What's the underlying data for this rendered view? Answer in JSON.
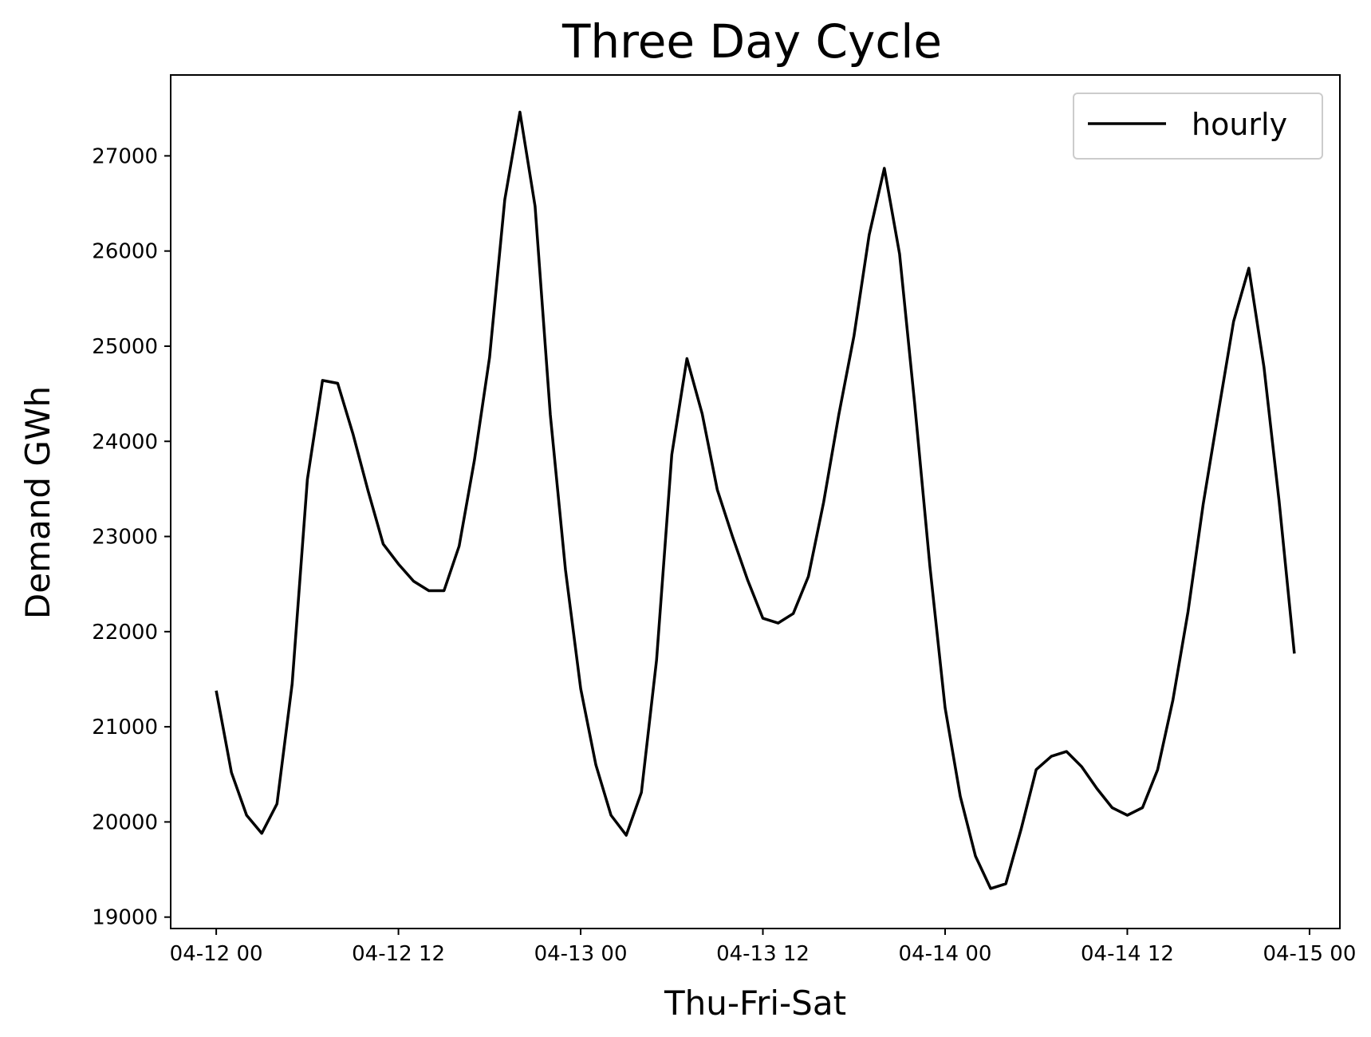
{
  "chart_data": {
    "type": "line",
    "title": "Three Day Cycle",
    "xlabel": "Thu-Fri-Sat",
    "ylabel": "Demand GWh",
    "x_tick_labels": [
      "04-12 00",
      "04-12 12",
      "04-13 00",
      "04-13 12",
      "04-14 00",
      "04-14 12",
      "04-15 00"
    ],
    "y_ticks": [
      19000,
      20000,
      21000,
      22000,
      23000,
      24000,
      25000,
      26000,
      27000
    ],
    "y_tick_labels": [
      "19000",
      "20000",
      "21000",
      "22000",
      "23000",
      "24000",
      "25000",
      "26000",
      "27000"
    ],
    "xlim": [
      "04-11 21",
      "04-15 02"
    ],
    "ylim": [
      18880,
      27850
    ],
    "grid": false,
    "legend_position": "top-right",
    "series": [
      {
        "name": "hourly",
        "color": "#000000",
        "x": [
          "04-12 00",
          "04-12 01",
          "04-12 02",
          "04-12 03",
          "04-12 04",
          "04-12 05",
          "04-12 06",
          "04-12 07",
          "04-12 08",
          "04-12 09",
          "04-12 10",
          "04-12 11",
          "04-12 12",
          "04-12 13",
          "04-12 14",
          "04-12 15",
          "04-12 16",
          "04-12 17",
          "04-12 18",
          "04-12 19",
          "04-12 20",
          "04-12 21",
          "04-12 22",
          "04-12 23",
          "04-13 00",
          "04-13 01",
          "04-13 02",
          "04-13 03",
          "04-13 04",
          "04-13 05",
          "04-13 06",
          "04-13 07",
          "04-13 08",
          "04-13 09",
          "04-13 10",
          "04-13 11",
          "04-13 12",
          "04-13 13",
          "04-13 14",
          "04-13 15",
          "04-13 16",
          "04-13 17",
          "04-13 18",
          "04-13 19",
          "04-13 20",
          "04-13 21",
          "04-13 22",
          "04-13 23",
          "04-14 00",
          "04-14 01",
          "04-14 02",
          "04-14 03",
          "04-14 04",
          "04-14 05",
          "04-14 06",
          "04-14 07",
          "04-14 08",
          "04-14 09",
          "04-14 10",
          "04-14 11",
          "04-14 12",
          "04-14 13",
          "04-14 14",
          "04-14 15",
          "04-14 16",
          "04-14 17",
          "04-14 18",
          "04-14 19",
          "04-14 20",
          "04-14 21",
          "04-14 22",
          "04-14 23"
        ],
        "values": [
          21380,
          20520,
          20070,
          19880,
          20190,
          21450,
          23600,
          24640,
          24610,
          24080,
          23480,
          22920,
          22710,
          22530,
          22430,
          22430,
          22900,
          23800,
          24880,
          26540,
          27460,
          26470,
          24280,
          22650,
          21400,
          20600,
          20070,
          19860,
          20310,
          21700,
          23860,
          24870,
          24290,
          23490,
          23000,
          22540,
          22140,
          22090,
          22190,
          22580,
          23360,
          24280,
          25110,
          26170,
          26870,
          25970,
          24390,
          22690,
          21200,
          20270,
          19640,
          19300,
          19350,
          19920,
          20550,
          20690,
          20740,
          20580,
          20350,
          20150,
          20070,
          20150,
          20550,
          21280,
          22210,
          23340,
          24310,
          25260,
          25820,
          24780,
          23370,
          21770
        ]
      }
    ]
  }
}
